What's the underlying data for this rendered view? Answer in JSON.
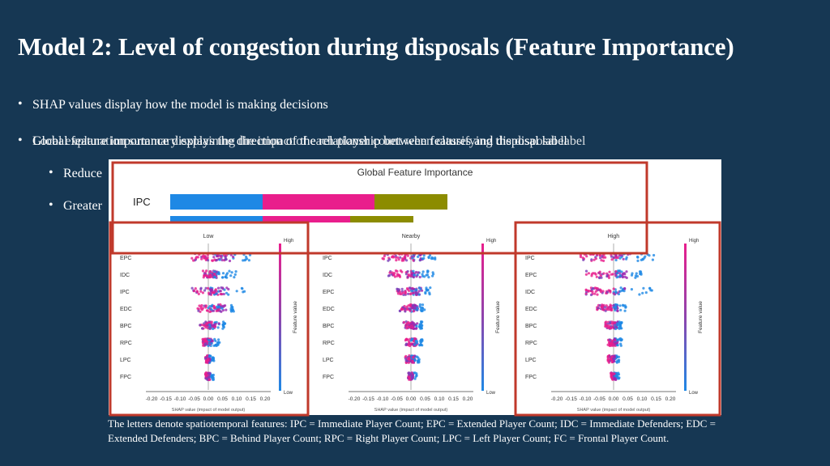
{
  "slide": {
    "title": "Model 2: Level of congestion during disposals (Feature Importance)",
    "bullets": [
      "SHAP values display how the model is making decisions",
      "Global feature importance displays the direction of the relationship between features and disposal label",
      "Local explanation summary explaining the impact of each player count when classifying the disposal label",
      "Reduce",
      "Greater"
    ],
    "caption": "The letters denote spatiotemporal features: IPC = Immediate Player Count; EPC = Extended Player Count; IDC = Immediate Defenders; EDC = Extended Defenders; BPC = Behind Player Count; RPC = Right Player Count; LPC = Left Player Count; FC = Frontal Player Count."
  },
  "colors": {
    "background": "#163753",
    "highlight": "#c0392b",
    "blue": "#1e88e5",
    "pink": "#e91e8c",
    "olive": "#8c8c00"
  },
  "chart_data": [
    {
      "type": "bar",
      "title": "Global Feature Importance",
      "categories": [
        "IPC",
        ""
      ],
      "series": [
        {
          "name": "Low",
          "values": [
            0.19,
            0.19
          ]
        },
        {
          "name": "Nearby",
          "values": [
            0.23,
            0.18
          ]
        },
        {
          "name": "High",
          "values": [
            0.15,
            0.13
          ]
        }
      ]
    },
    {
      "type": "scatter",
      "title": "Low",
      "features": [
        "EPC",
        "IDC",
        "IPC",
        "EDC",
        "BPC",
        "RPC",
        "LPC",
        "FPC"
      ],
      "xlabel": "SHAP value (impact of model output)",
      "xticks": [
        "-0.20",
        "-0.15",
        "-0.10",
        "-0.05",
        "0.00",
        "0.05",
        "0.10",
        "0.15",
        "0.20"
      ],
      "colorbar": {
        "label": "Feature value",
        "high": "High",
        "low": "Low"
      }
    },
    {
      "type": "scatter",
      "title": "Nearby",
      "features": [
        "IPC",
        "IDC",
        "EPC",
        "EDC",
        "BPC",
        "RPC",
        "LPC",
        "FPC"
      ],
      "xlabel": "SHAP value (impact of model output)",
      "xticks": [
        "-0.20",
        "-0.15",
        "-0.10",
        "-0.05",
        "0.00",
        "0.05",
        "0.10",
        "0.15",
        "0.20"
      ],
      "colorbar": {
        "label": "Feature value",
        "high": "High",
        "low": "Low"
      }
    },
    {
      "type": "scatter",
      "title": "High",
      "features": [
        "IPC",
        "EPC",
        "IDC",
        "EDC",
        "BPC",
        "RPC",
        "LPC",
        "FPC"
      ],
      "xlabel": "SHAP value (impact of model output)",
      "xticks": [
        "-0.20",
        "-0.15",
        "-0.10",
        "-0.05",
        "0.00",
        "0.05",
        "0.10",
        "0.15",
        "0.20"
      ],
      "colorbar": {
        "label": "Feature value",
        "high": "High",
        "low": "Low"
      }
    }
  ]
}
